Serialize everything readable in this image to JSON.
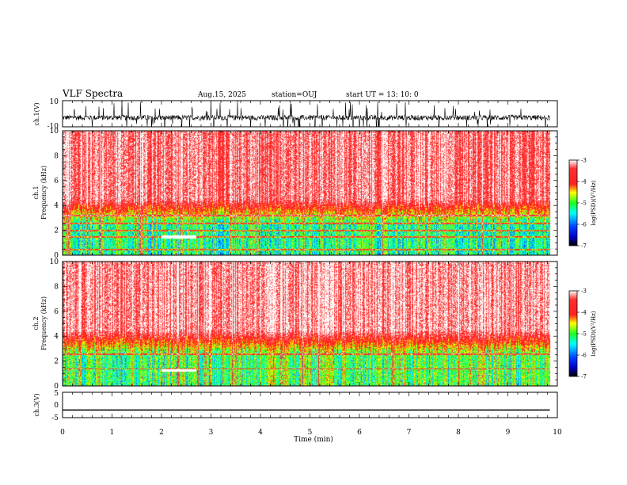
{
  "header": {
    "title": "VLF Spectra",
    "date": "Aug.15, 2025",
    "station": "station=OUJ",
    "start_ut": "start  UT =   13: 10: 0"
  },
  "chart_data": [
    {
      "type": "line",
      "panel": "waveform-ch1",
      "ylabel": "ch.1(V)",
      "ylim": [
        -10,
        10
      ],
      "yticks": [
        "10",
        "-10"
      ],
      "description_of_signal": "noisy waveform centered near -3 V with spikes between about -10 and 10",
      "baseline": -3,
      "x_range": [
        0,
        9.85
      ]
    },
    {
      "type": "heatmap",
      "panel": "spectrogram-ch1",
      "ylabel_line1": "ch.1",
      "ylabel_line2": "Frequency  (kHz)",
      "ylim": [
        0,
        10
      ],
      "yticks": [
        "0",
        "2",
        "4",
        "6",
        "8",
        "10"
      ],
      "xlim": [
        0,
        10
      ],
      "data_extent_x": [
        0,
        9.85
      ],
      "colorbar": {
        "label": "log(PSD)(V²/Hz)",
        "range": [
          -7,
          -3
        ],
        "ticks": [
          "-3",
          "-4",
          "-5",
          "-6",
          "-7"
        ]
      },
      "features": {
        "high_band_psd": -3.3,
        "low_band_psd": -5.2,
        "interference_lines_khz": [
          0.5,
          1.5,
          2.0,
          2.6,
          3.2
        ],
        "hot_feature": {
          "x": [
            2.0,
            2.7
          ],
          "y": 1.5
        }
      }
    },
    {
      "type": "heatmap",
      "panel": "spectrogram-ch2",
      "ylabel_line1": "ch.2",
      "ylabel_line2": "Frequency  (kHz)",
      "ylim": [
        0,
        10
      ],
      "yticks": [
        "0",
        "2",
        "4",
        "6",
        "8",
        "10"
      ],
      "xlim": [
        0,
        10
      ],
      "data_extent_x": [
        0,
        9.85
      ],
      "colorbar": {
        "label": "log(PSD)(V²/Hz)",
        "range": [
          -7,
          -3
        ],
        "ticks": [
          "-3",
          "-4",
          "-5",
          "-6",
          "-7"
        ]
      },
      "features": {
        "high_band_psd": -3.2,
        "low_band_psd": -5.0,
        "interference_lines_khz": [
          1.4,
          2.6
        ],
        "hot_feature": {
          "x": [
            2.0,
            2.7
          ],
          "y": 1.3
        }
      }
    },
    {
      "type": "line",
      "panel": "waveform-ch3",
      "ylabel": "ch.3(V)",
      "ylim": [
        -5,
        5
      ],
      "yticks": [
        "5",
        "0",
        "-5"
      ],
      "x": [
        0,
        9.85
      ],
      "y": [
        -2,
        -2
      ]
    }
  ],
  "x_axis": {
    "label": "Time  (min)",
    "ticks": [
      "0",
      "1",
      "2",
      "3",
      "4",
      "5",
      "6",
      "7",
      "8",
      "9",
      "10"
    ]
  },
  "colors": {
    "axis": "#000000",
    "trace": "#000000"
  }
}
